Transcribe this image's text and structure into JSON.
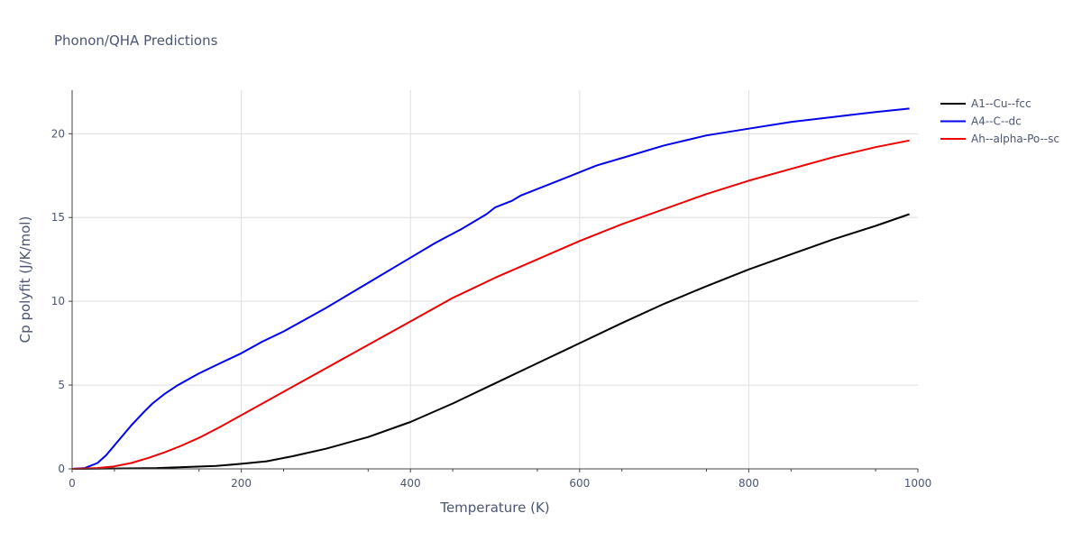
{
  "chart_data": {
    "type": "line",
    "title": "Phonon/QHA Predictions",
    "xlabel": "Temperature (K)",
    "ylabel": "Cp polyfit (J/K/mol)",
    "xlim": [
      0,
      1000
    ],
    "ylim": [
      0,
      22.6
    ],
    "xticks": [
      0,
      200,
      400,
      600,
      800,
      1000
    ],
    "xtick_labels": [
      "0",
      "200",
      "400",
      "600",
      "800",
      "1000"
    ],
    "yticks": [
      0,
      5,
      10,
      15,
      20
    ],
    "ytick_labels": [
      "0",
      "5",
      "10",
      "15",
      "20"
    ],
    "grid": true,
    "legend_position": "top-right",
    "series": [
      {
        "name": "A1--Cu--fcc",
        "color": "#000000",
        "x": [
          0,
          50,
          100,
          130,
          170,
          200,
          230,
          260,
          300,
          350,
          400,
          450,
          500,
          550,
          600,
          650,
          700,
          750,
          800,
          850,
          900,
          950,
          990
        ],
        "y": [
          0,
          0.02,
          0.05,
          0.1,
          0.17,
          0.3,
          0.45,
          0.75,
          1.2,
          1.9,
          2.8,
          3.9,
          5.1,
          6.3,
          7.5,
          8.7,
          9.85,
          10.9,
          11.9,
          12.8,
          13.7,
          14.5,
          15.2
        ]
      },
      {
        "name": "A4--C--dc",
        "color": "#0000ee",
        "x": [
          0,
          15,
          30,
          40,
          55,
          70,
          85,
          95,
          110,
          125,
          150,
          175,
          200,
          225,
          250,
          275,
          300,
          330,
          360,
          400,
          430,
          460,
          490,
          500,
          520,
          530,
          560,
          600,
          620,
          660,
          700,
          750,
          800,
          850,
          900,
          950,
          990
        ],
        "y": [
          0,
          0.05,
          0.35,
          0.8,
          1.7,
          2.6,
          3.4,
          3.9,
          4.5,
          5.0,
          5.7,
          6.3,
          6.9,
          7.6,
          8.2,
          8.9,
          9.6,
          10.5,
          11.4,
          12.6,
          13.5,
          14.3,
          15.2,
          15.6,
          16.0,
          16.3,
          16.9,
          17.7,
          18.1,
          18.7,
          19.3,
          19.9,
          20.3,
          20.7,
          21.0,
          21.3,
          21.5
        ]
      },
      {
        "name": "Ah--alpha-Po--sc",
        "color": "#ee0000",
        "x": [
          0,
          30,
          50,
          70,
          90,
          110,
          130,
          150,
          175,
          200,
          250,
          300,
          350,
          400,
          450,
          500,
          550,
          600,
          650,
          700,
          750,
          800,
          850,
          900,
          950,
          990
        ],
        "y": [
          0,
          0.05,
          0.15,
          0.35,
          0.65,
          1.0,
          1.4,
          1.85,
          2.5,
          3.2,
          4.6,
          6.0,
          7.4,
          8.8,
          10.2,
          11.4,
          12.5,
          13.6,
          14.6,
          15.5,
          16.4,
          17.2,
          17.9,
          18.6,
          19.2,
          19.6
        ]
      }
    ]
  }
}
